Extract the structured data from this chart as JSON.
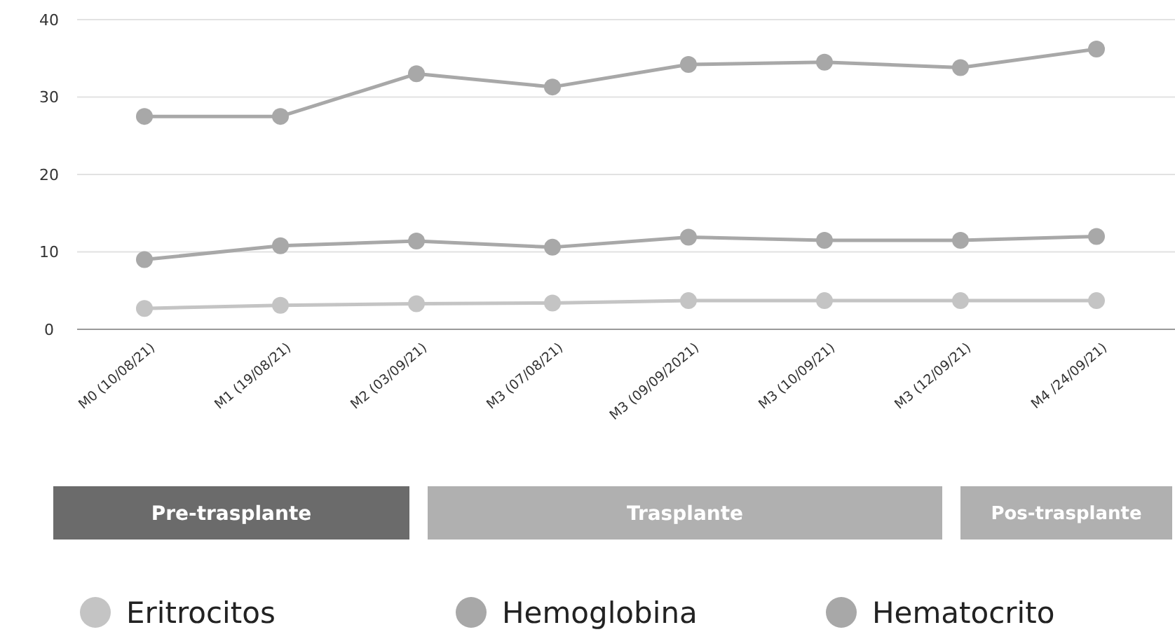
{
  "chart_data": {
    "type": "line",
    "categories": [
      "M0 (10/08/21)",
      "M1 (19/08/21)",
      "M2 (03/09/21)",
      "M3 (07/08/21)",
      "M3 (09/09/2021)",
      "M3 (10/09/21)",
      "M3 (12/09/21)",
      "M4 /24/09/21)"
    ],
    "series": [
      {
        "name": "Eritrocitos",
        "color": "#c4c4c4",
        "values": [
          2.7,
          3.1,
          3.3,
          3.4,
          3.7,
          3.7,
          3.7,
          3.7
        ]
      },
      {
        "name": "Hemoglobina",
        "color": "#a8a8a8",
        "values": [
          9,
          10.8,
          11.4,
          10.6,
          11.9,
          11.5,
          11.5,
          12
        ]
      },
      {
        "name": "Hematocrito",
        "color": "#a8a8a8",
        "values": [
          27.5,
          27.5,
          33,
          31.3,
          34.2,
          34.5,
          33.8,
          36.2
        ]
      }
    ],
    "ylim": [
      0,
      40
    ],
    "yticks": [
      0,
      10,
      20,
      30,
      40
    ],
    "grid": "y",
    "marker": "circle",
    "line_style": "solid",
    "legend": "bottom",
    "annotations": [
      "Pre-trasplante",
      "Trasplante",
      "Pos-trasplante"
    ]
  }
}
